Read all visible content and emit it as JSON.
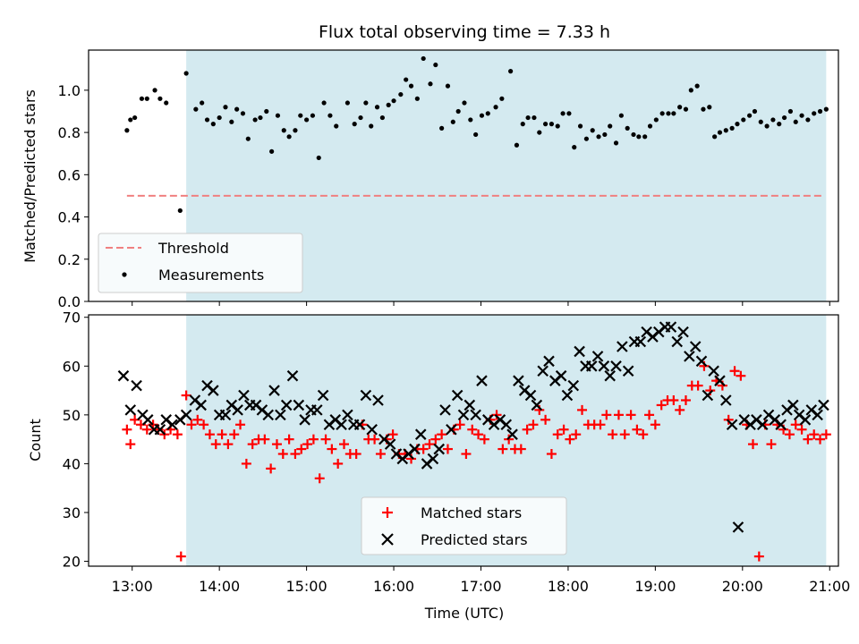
{
  "chart_data": {
    "title": "Flux total observing time = 7.33 h",
    "xlabel": "Time (UTC)",
    "x_tick_labels": [
      "13:00",
      "14:00",
      "15:00",
      "16:00",
      "17:00",
      "18:00",
      "19:00",
      "20:00",
      "21:00"
    ],
    "x_tick_values": [
      13,
      14,
      15,
      16,
      17,
      18,
      19,
      20,
      21
    ],
    "xlim": [
      12.5,
      21.1
    ],
    "shaded_interval": [
      13.62,
      20.96
    ],
    "shade_color": "#d4eaf0",
    "panels": [
      {
        "type": "scatter",
        "ylabel": "Matched/Predicted stars",
        "ylim": [
          0,
          1.19
        ],
        "y_ticks": [
          0.0,
          0.2,
          0.4,
          0.6,
          0.8,
          1.0
        ],
        "y_tick_labels": [
          "0.0",
          "0.2",
          "0.4",
          "0.6",
          "0.8",
          "1.0"
        ],
        "threshold": {
          "name": "Threshold",
          "value": 0.5,
          "x_range": [
            12.94,
            20.93
          ],
          "color": "#f08080"
        },
        "measurements": {
          "name": "Measurements",
          "color": "#000000",
          "x": [
            12.94,
            12.98,
            13.03,
            13.11,
            13.17,
            13.26,
            13.32,
            13.39,
            13.55,
            13.62,
            13.73,
            13.8,
            13.86,
            13.93,
            14.0,
            14.07,
            14.14,
            14.2,
            14.27,
            14.33,
            14.41,
            14.47,
            14.54,
            14.6,
            14.67,
            14.74,
            14.8,
            14.87,
            14.93,
            15.0,
            15.07,
            15.14,
            15.2,
            15.27,
            15.34,
            15.47,
            15.55,
            15.62,
            15.68,
            15.74,
            15.81,
            15.87,
            15.94,
            16.0,
            16.08,
            16.14,
            16.2,
            16.27,
            16.34,
            16.42,
            16.48,
            16.55,
            16.62,
            16.68,
            16.74,
            16.81,
            16.88,
            16.94,
            17.01,
            17.08,
            17.17,
            17.24,
            17.34,
            17.41,
            17.48,
            17.54,
            17.61,
            17.67,
            17.74,
            17.81,
            17.88,
            17.94,
            18.01,
            18.07,
            18.14,
            18.21,
            18.28,
            18.35,
            18.42,
            18.48,
            18.55,
            18.61,
            18.68,
            18.75,
            18.81,
            18.88,
            18.94,
            19.01,
            19.08,
            19.15,
            19.21,
            19.28,
            19.35,
            19.41,
            19.48,
            19.55,
            19.62,
            19.68,
            19.74,
            19.81,
            19.88,
            19.94,
            20.01,
            20.08,
            20.14,
            20.21,
            20.28,
            20.35,
            20.42,
            20.48,
            20.55,
            20.61,
            20.68,
            20.75,
            20.82,
            20.89,
            20.96
          ],
          "y": [
            0.81,
            0.86,
            0.87,
            0.96,
            0.96,
            1.0,
            0.96,
            0.94,
            0.43,
            1.08,
            0.91,
            0.94,
            0.86,
            0.84,
            0.87,
            0.92,
            0.85,
            0.91,
            0.89,
            0.77,
            0.86,
            0.87,
            0.9,
            0.71,
            0.88,
            0.81,
            0.78,
            0.81,
            0.88,
            0.86,
            0.88,
            0.68,
            0.94,
            0.88,
            0.83,
            0.94,
            0.84,
            0.87,
            0.94,
            0.83,
            0.92,
            0.87,
            0.93,
            0.95,
            0.98,
            1.05,
            1.02,
            0.96,
            1.15,
            1.03,
            1.12,
            0.82,
            1.02,
            0.85,
            0.9,
            0.94,
            0.86,
            0.79,
            0.88,
            0.89,
            0.92,
            0.96,
            1.09,
            0.74,
            0.84,
            0.87,
            0.87,
            0.8,
            0.84,
            0.84,
            0.83,
            0.89,
            0.89,
            0.73,
            0.83,
            0.77,
            0.81,
            0.78,
            0.79,
            0.83,
            0.75,
            0.88,
            0.82,
            0.79,
            0.78,
            0.78,
            0.83,
            0.86,
            0.89,
            0.89,
            0.89,
            0.92,
            0.91,
            1.0,
            1.02,
            0.91,
            0.92,
            0.78,
            0.8,
            0.81,
            0.82,
            0.84,
            0.86,
            0.88,
            0.9,
            0.85,
            0.83,
            0.86,
            0.84,
            0.87,
            0.9,
            0.85,
            0.88,
            0.86,
            0.89,
            0.9,
            0.91
          ]
        }
      },
      {
        "type": "scatter",
        "ylabel": "Count",
        "ylim": [
          19,
          70.5
        ],
        "y_ticks": [
          20,
          30,
          40,
          50,
          60,
          70
        ],
        "y_tick_labels": [
          "20",
          "30",
          "40",
          "50",
          "60",
          "70"
        ],
        "series": [
          {
            "name": "Matched stars",
            "marker": "plus",
            "color": "#ff0000",
            "x": [
              12.94,
              12.98,
              13.03,
              13.1,
              13.17,
              13.24,
              13.3,
              13.37,
              13.44,
              13.52,
              13.56,
              13.62,
              13.68,
              13.75,
              13.82,
              13.89,
              13.96,
              14.03,
              14.1,
              14.17,
              14.24,
              14.31,
              14.38,
              14.45,
              14.52,
              14.59,
              14.66,
              14.73,
              14.8,
              14.87,
              14.94,
              15.01,
              15.08,
              15.15,
              15.22,
              15.29,
              15.36,
              15.43,
              15.5,
              15.57,
              15.64,
              15.71,
              15.78,
              15.85,
              15.92,
              15.99,
              16.06,
              16.13,
              16.2,
              16.27,
              16.34,
              16.41,
              16.48,
              16.55,
              16.62,
              16.69,
              16.76,
              16.83,
              16.9,
              16.97,
              17.04,
              17.11,
              17.18,
              17.25,
              17.32,
              17.39,
              17.46,
              17.53,
              17.6,
              17.67,
              17.74,
              17.81,
              17.88,
              17.95,
              18.02,
              18.09,
              18.16,
              18.23,
              18.3,
              18.37,
              18.44,
              18.51,
              18.58,
              18.65,
              18.72,
              18.79,
              18.86,
              18.93,
              19.0,
              19.07,
              19.14,
              19.21,
              19.28,
              19.35,
              19.42,
              19.49,
              19.56,
              19.63,
              19.7,
              19.77,
              19.84,
              19.91,
              19.98,
              20.05,
              20.12,
              20.19,
              20.26,
              20.33,
              20.4,
              20.47,
              20.54,
              20.61,
              20.68,
              20.75,
              20.82,
              20.89,
              20.96
            ],
            "y": [
              47,
              44,
              49,
              48,
              47,
              48,
              47,
              46,
              47,
              46,
              21,
              54,
              48,
              49,
              48,
              46,
              44,
              46,
              44,
              46,
              48,
              40,
              44,
              45,
              45,
              39,
              44,
              42,
              45,
              42,
              43,
              44,
              45,
              37,
              45,
              43,
              40,
              44,
              42,
              42,
              48,
              45,
              45,
              42,
              45,
              46,
              42,
              42,
              41,
              43,
              43,
              44,
              45,
              46,
              43,
              47,
              48,
              42,
              47,
              46,
              45,
              49,
              50,
              43,
              45,
              43,
              43,
              47,
              48,
              51,
              49,
              42,
              46,
              47,
              45,
              46,
              51,
              48,
              48,
              48,
              50,
              46,
              50,
              46,
              50,
              47,
              46,
              50,
              48,
              52,
              53,
              53,
              51,
              53,
              56,
              56,
              60,
              55,
              57,
              56,
              49,
              59,
              58,
              48,
              44,
              21,
              48,
              44,
              48,
              47,
              46,
              48,
              47,
              45,
              46,
              45,
              46
            ],
            "legend_order": 0
          },
          {
            "name": "Predicted stars",
            "marker": "x",
            "color": "#000000",
            "x": [
              12.9,
              12.98,
              13.05,
              13.12,
              13.18,
              13.25,
              13.32,
              13.39,
              13.46,
              13.55,
              13.62,
              13.72,
              13.79,
              13.86,
              13.93,
              14.0,
              14.07,
              14.14,
              14.21,
              14.28,
              14.35,
              14.42,
              14.49,
              14.56,
              14.63,
              14.7,
              14.77,
              14.84,
              14.91,
              14.98,
              15.05,
              15.12,
              15.19,
              15.26,
              15.33,
              15.4,
              15.47,
              15.54,
              15.61,
              15.68,
              15.75,
              15.82,
              15.89,
              15.96,
              16.03,
              16.1,
              16.17,
              16.24,
              16.31,
              16.38,
              16.45,
              16.52,
              16.59,
              16.66,
              16.73,
              16.8,
              16.87,
              16.94,
              17.01,
              17.08,
              17.15,
              17.22,
              17.29,
              17.36,
              17.43,
              17.5,
              17.57,
              17.64,
              17.71,
              17.78,
              17.85,
              17.92,
              17.99,
              18.06,
              18.13,
              18.2,
              18.27,
              18.34,
              18.41,
              18.48,
              18.55,
              18.62,
              18.69,
              18.76,
              18.83,
              18.9,
              18.97,
              19.04,
              19.11,
              19.18,
              19.25,
              19.32,
              19.39,
              19.46,
              19.53,
              19.6,
              19.67,
              19.74,
              19.81,
              19.88,
              19.95,
              20.02,
              20.09,
              20.16,
              20.23,
              20.3,
              20.37,
              20.44,
              20.51,
              20.58,
              20.65,
              20.72,
              20.79,
              20.86,
              20.93
            ],
            "y": [
              58,
              51,
              56,
              50,
              49,
              47,
              47,
              49,
              48,
              49,
              50,
              53,
              52,
              56,
              55,
              50,
              50,
              52,
              51,
              54,
              52,
              52,
              51,
              50,
              55,
              50,
              52,
              58,
              52,
              49,
              51,
              51,
              54,
              48,
              49,
              48,
              50,
              48,
              48,
              54,
              47,
              53,
              45,
              44,
              42,
              41,
              42,
              43,
              46,
              40,
              41,
              43,
              51,
              47,
              54,
              50,
              52,
              50,
              57,
              49,
              48,
              49,
              48,
              46,
              57,
              55,
              54,
              52,
              59,
              61,
              57,
              58,
              54,
              56,
              63,
              60,
              60,
              62,
              60,
              58,
              60,
              64,
              59,
              65,
              65,
              67,
              66,
              67,
              68,
              68,
              65,
              67,
              62,
              64,
              61,
              54,
              59,
              57,
              53,
              48,
              27,
              49,
              48,
              49,
              48,
              50,
              49,
              48,
              51,
              52,
              50,
              49,
              51,
              50,
              52
            ],
            "legend_order": 1
          }
        ]
      }
    ],
    "legend_top": {
      "location": "lower-left",
      "entries": [
        "Threshold",
        "Measurements"
      ]
    },
    "legend_bottom": {
      "location": "lower-center",
      "entries": [
        "Matched stars",
        "Predicted stars"
      ]
    },
    "grid": false
  }
}
